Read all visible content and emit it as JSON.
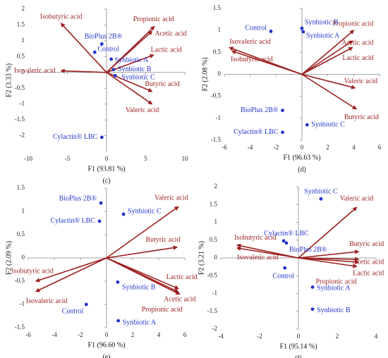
{
  "chart_data": [
    {
      "type": "biplot",
      "label": "(c)",
      "x_label": "F1 (93.81 %)",
      "y_label": "F2 (3.33 %)",
      "xlim": [
        -10,
        10
      ],
      "xticks": [
        -10,
        -5,
        0,
        5,
        10
      ],
      "ylim": [
        -2.5,
        2
      ],
      "yticks": [
        -2,
        -1.5,
        -1,
        -0.5,
        0,
        0.5,
        1,
        1.5,
        2
      ],
      "points": {
        "color": "#2233cc",
        "labels": [
          "BioPlus 2B®",
          "Control",
          "Synbiotic A",
          "Synbiotic B",
          "Synbiotic C",
          "Cylactin® LBC"
        ],
        "x": [
          -0.6,
          -1.5,
          0.6,
          0.9,
          1.1,
          -0.6
        ],
        "y": [
          0.9,
          0.64,
          0.42,
          0.09,
          -0.1,
          -2.05
        ]
      },
      "vectors": {
        "color": "#9c1f1f",
        "labels": [
          "Isobutyric acid",
          "Propionic acid",
          "Acetic acid",
          "Lactic acid",
          "Isovaleric acid",
          "Butyric acid",
          "Valeric acid"
        ],
        "x": [
          -5.8,
          6.1,
          5.8,
          6,
          -5.8,
          5.8,
          5.8
        ],
        "y": [
          1.55,
          1.45,
          1.3,
          0.55,
          0.05,
          -0.6,
          -1.0
        ]
      }
    },
    {
      "type": "biplot",
      "label": "(d)",
      "x_label": "F1 (96.63 %)",
      "y_label": "F2 (2.08 %)",
      "xlim": [
        -6,
        6
      ],
      "xticks": [
        -6,
        -4,
        -2,
        0,
        2,
        4,
        6
      ],
      "ylim": [
        -1.5,
        1.5
      ],
      "yticks": [
        -1.5,
        -1,
        -0.5,
        0,
        0.5,
        1,
        1.5
      ],
      "points": {
        "color": "#2233cc",
        "labels": [
          "Control",
          "Synbiotic B",
          "Synbiotic A",
          "BioPlus 2B®",
          "Cylactin® LBC",
          "Synbiotic C"
        ],
        "x": [
          -2.4,
          0,
          0.1,
          -1.5,
          -1.5,
          0.4
        ],
        "y": [
          0.98,
          1.05,
          0.97,
          -0.82,
          -1.32,
          -1.15
        ]
      },
      "vectors": {
        "color": "#9c1f1f",
        "labels": [
          "Isovaleric acid",
          "Isobutyric acid",
          "Propionic acid",
          "Acetic acid",
          "Lactic acid",
          "Valeric acid",
          "Butyric acid"
        ],
        "x": [
          -5.6,
          -5.4,
          4.0,
          3.9,
          3.9,
          4.1,
          4.2
        ],
        "y": [
          0.61,
          0.53,
          1.0,
          0.76,
          0.61,
          -0.31,
          -0.79
        ]
      }
    },
    {
      "type": "biplot",
      "label": "(e)",
      "x_label": "F1 (96.60 %)",
      "y_label": "F2 (2.09 %)",
      "xlim": [
        -6,
        6
      ],
      "xticks": [
        -6,
        -4,
        -2,
        0,
        2,
        4,
        6
      ],
      "ylim": [
        -1.5,
        1.5
      ],
      "yticks": [
        -1.5,
        -1,
        -0.5,
        0,
        0.5,
        1,
        1.5
      ],
      "points": {
        "color": "#2233cc",
        "labels": [
          "BioPlus 2B®",
          "Cylactin® LBC",
          "Synbiotic C",
          "Synbiotic B",
          "Control",
          "Synbiotic A"
        ],
        "x": [
          -0.43,
          -0.54,
          1.3,
          0.86,
          -1.55,
          0.9
        ],
        "y": [
          1.18,
          0.79,
          0.94,
          -0.52,
          -1.0,
          -1.35
        ]
      },
      "vectors": {
        "color": "#9c1f1f",
        "labels": [
          "Valeric acid",
          "Butyric acid",
          "Lactic acid",
          "Acetic acid",
          "Propionic acid",
          "Isobutyric acid",
          "Isovaleric acid"
        ],
        "x": [
          5.5,
          5.4,
          5.5,
          5.5,
          5.6,
          -5.4,
          -5.4
        ],
        "y": [
          1.1,
          0.23,
          -0.66,
          -0.73,
          -0.78,
          -0.5,
          -0.72
        ]
      }
    },
    {
      "type": "biplot",
      "label": "(f)",
      "x_label": "F1 (95.14 %)",
      "y_label": "F2 (3.21 %)",
      "xlim": [
        -4,
        4
      ],
      "xticks": [
        -4,
        -2,
        0,
        2,
        4
      ],
      "ylim": [
        -2,
        2
      ],
      "yticks": [
        -2,
        -1.5,
        -1,
        -0.5,
        0,
        0.5,
        1,
        1.5,
        2
      ],
      "points": {
        "color": "#2233cc",
        "labels": [
          "Synbiotic C",
          "Cylactin® LBC",
          "BioPlus 2B®",
          "Control",
          "Synbiotic A",
          "Synbiotic B"
        ],
        "x": [
          1.16,
          -0.76,
          -0.62,
          -0.7,
          0.73,
          0.73
        ],
        "y": [
          1.66,
          0.48,
          0.42,
          -0.28,
          -0.82,
          -1.44
        ]
      },
      "vectors": {
        "color": "#9c1f1f",
        "labels": [
          "Valeric acid",
          "Butyric acid",
          "Acetic acid",
          "Lactic acid",
          "Propionic acid",
          "Isobutyric acid",
          "Isovaleric acid"
        ],
        "x": [
          3.0,
          3.1,
          3.1,
          3.1,
          3.0,
          -3.16,
          -3.16
        ],
        "y": [
          1.42,
          0.18,
          -0.04,
          -0.12,
          -0.24,
          0.36,
          0.28
        ]
      }
    }
  ]
}
